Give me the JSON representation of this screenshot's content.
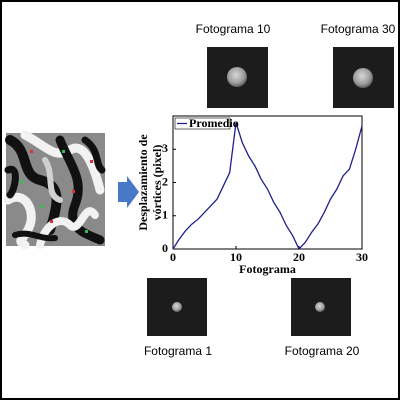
{
  "chart_data": {
    "type": "line",
    "xlabel": "Fotograma",
    "ylabel": [
      "Desplazamiento de",
      "vórtices (pixel)"
    ],
    "x": [
      0,
      1,
      2,
      3,
      4,
      5,
      6,
      7,
      8,
      9,
      10,
      11,
      12,
      13,
      14,
      15,
      16,
      17,
      18,
      19,
      20,
      21,
      22,
      23,
      24,
      25,
      26,
      27,
      28,
      29,
      30
    ],
    "series": [
      {
        "name": "Promedio",
        "color": "#1f1f8f",
        "values": [
          0,
          0.3,
          0.55,
          0.75,
          0.9,
          1.1,
          1.3,
          1.5,
          1.9,
          2.3,
          3.8,
          3.2,
          2.8,
          2.5,
          2.1,
          1.8,
          1.4,
          1.1,
          0.7,
          0.4,
          0,
          0.2,
          0.5,
          0.75,
          1.1,
          1.5,
          1.8,
          2.2,
          2.4,
          3.0,
          3.7
        ]
      }
    ],
    "xlim": [
      0,
      30
    ],
    "ylim": [
      0,
      4
    ],
    "xticks": [
      0,
      10,
      20,
      30
    ],
    "yticks": [
      0,
      1,
      2,
      3
    ],
    "legend": "upper left"
  },
  "frames": [
    {
      "label": "Fotograma 10"
    },
    {
      "label": "Fotograma 30"
    },
    {
      "label": "Fotograma 1"
    },
    {
      "label": "Fotograma 20"
    }
  ]
}
